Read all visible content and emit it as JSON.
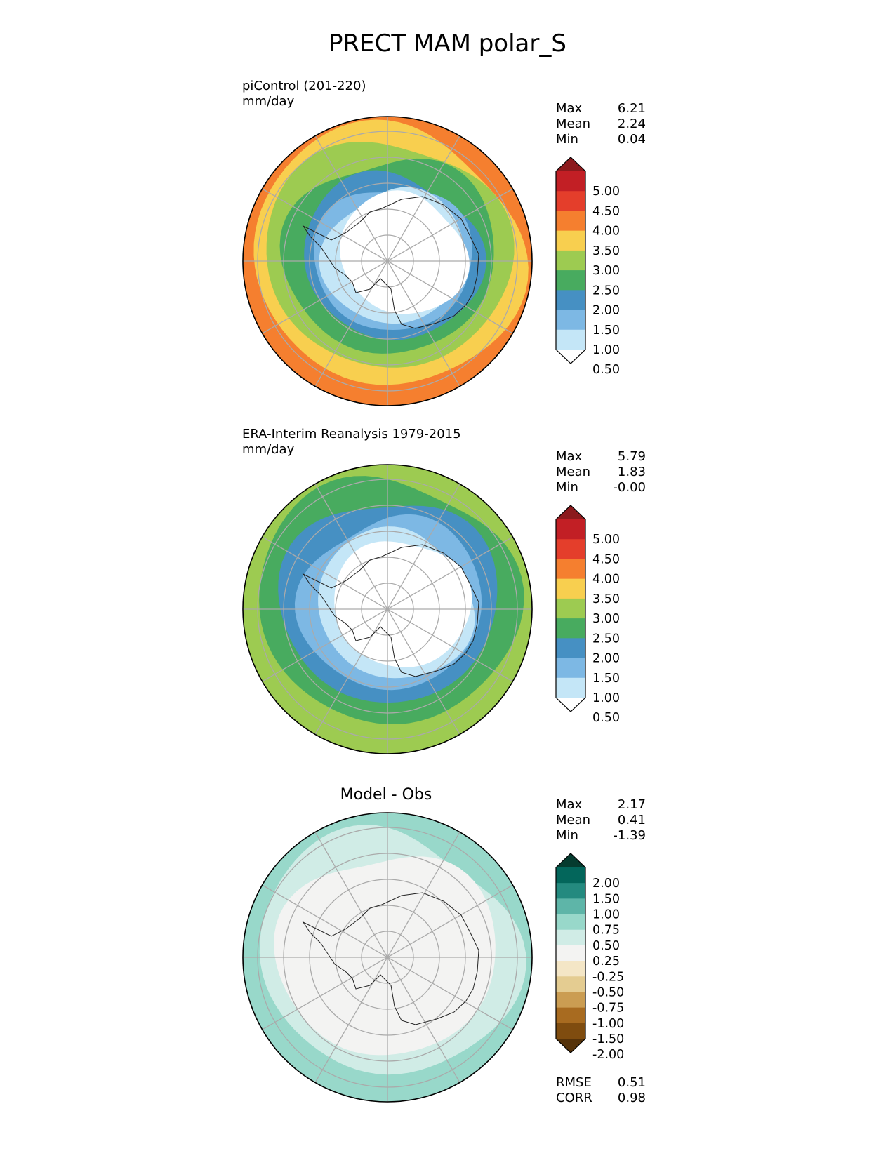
{
  "title": "PRECT MAM polar_S",
  "panels": [
    {
      "id": "model",
      "title_lines": [
        "piControl (201-220)",
        "mm/day"
      ],
      "stats": [
        {
          "label": "Max",
          "value": "6.21"
        },
        {
          "label": "Mean",
          "value": "2.24"
        },
        {
          "label": "Min",
          "value": "0.04"
        }
      ]
    },
    {
      "id": "obs",
      "title_lines": [
        "ERA-Interim Reanalysis 1979-2015",
        "mm/day"
      ],
      "stats": [
        {
          "label": "Max",
          "value": "5.79"
        },
        {
          "label": "Mean",
          "value": "1.83"
        },
        {
          "label": "Min",
          "value": "-0.00"
        }
      ]
    },
    {
      "id": "diff",
      "title": "Model - Obs",
      "stats": [
        {
          "label": "Max",
          "value": "2.17"
        },
        {
          "label": "Mean",
          "value": "0.41"
        },
        {
          "label": "Min",
          "value": "-1.39"
        }
      ],
      "metrics": [
        {
          "label": "RMSE",
          "value": "0.51"
        },
        {
          "label": "CORR",
          "value": "0.98"
        }
      ]
    }
  ],
  "colorbars": {
    "precip": {
      "labels": [
        "5.00",
        "4.50",
        "4.00",
        "3.50",
        "3.00",
        "2.50",
        "2.00",
        "1.50",
        "1.00",
        "0.50"
      ],
      "colors": [
        "#8c1a1d",
        "#c21f25",
        "#e43e2b",
        "#f57f2f",
        "#f8cf4f",
        "#9dcb51",
        "#48ab5f",
        "#4690c3",
        "#7db8e4",
        "#c4e6f7",
        "#ffffff"
      ]
    },
    "diff": {
      "labels": [
        "2.00",
        "1.50",
        "1.00",
        "0.75",
        "0.50",
        "0.25",
        "-0.25",
        "-0.50",
        "-0.75",
        "-1.00",
        "-1.50",
        "-2.00"
      ],
      "colors": [
        "#053b2f",
        "#03665b",
        "#248a7f",
        "#5eb5a8",
        "#98d8ca",
        "#d0ece6",
        "#f3f3f2",
        "#f4e6c6",
        "#e4cc91",
        "#cb9d52",
        "#a86b20",
        "#7f4c0f",
        "#553209"
      ]
    }
  }
}
